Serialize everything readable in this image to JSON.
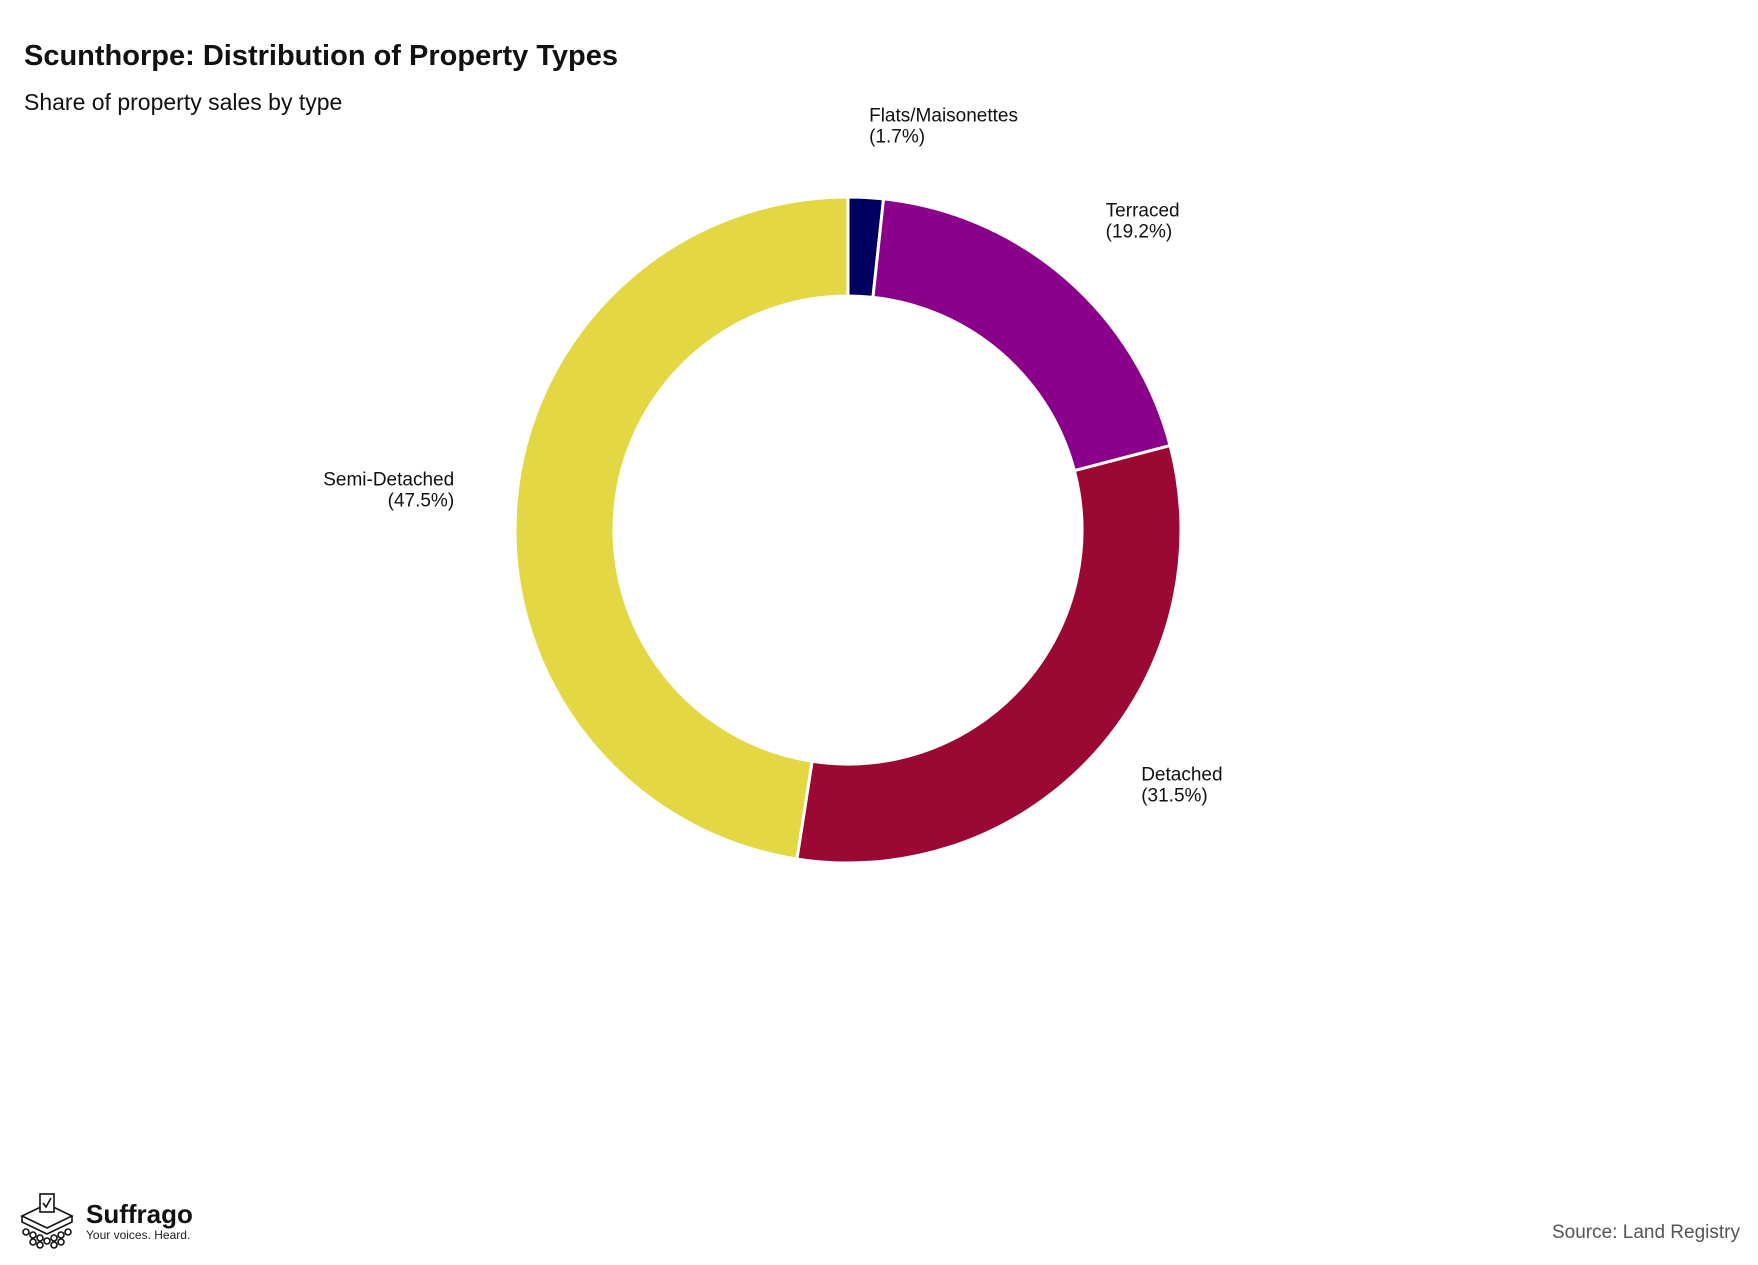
{
  "title": "Scunthorpe: Distribution of Property Types",
  "subtitle": "Share of property sales by type",
  "source": "Source: Land Registry",
  "logo": {
    "name": "Suffrago",
    "tagline": "Your voices. Heard."
  },
  "colors": {
    "Flats/Maisonettes": "#000060",
    "Terraced": "#8b008b",
    "Detached": "#9b0833",
    "Semi-Detached": "#e3d843"
  },
  "chart_data": {
    "type": "pie",
    "style": "donut",
    "start": "12 o'clock, clockwise",
    "slices": [
      {
        "name": "Flats/Maisonettes",
        "value": 1.7,
        "label": "(1.7%)"
      },
      {
        "name": "Terraced",
        "value": 19.2,
        "label": "(19.2%)"
      },
      {
        "name": "Detached",
        "value": 31.5,
        "label": "(31.5%)"
      },
      {
        "name": "Semi-Detached",
        "value": 47.5,
        "label": "(47.5%)"
      }
    ]
  }
}
